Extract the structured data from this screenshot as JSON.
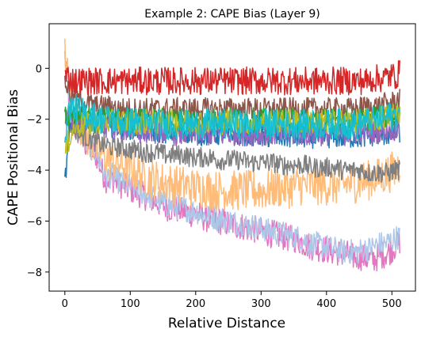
{
  "chart_data": {
    "type": "line",
    "title": "Example 2: CAPE Bias (Layer 9)",
    "xlabel": "Relative Distance",
    "ylabel": "CAPE Positional Bias",
    "xlim": [
      -24,
      536
    ],
    "ylim": [
      -8.75,
      1.75
    ],
    "xticks": [
      0,
      100,
      200,
      300,
      400,
      500
    ],
    "yticks": [
      0,
      -2,
      -4,
      -6,
      -8
    ],
    "xtick_labels": [
      "0",
      "100",
      "200",
      "300",
      "400",
      "500"
    ],
    "ytick_labels": [
      "0",
      "−2",
      "−4",
      "−6",
      "−8"
    ],
    "grid": false,
    "x_step": 8,
    "x_count": 65,
    "series": [
      {
        "color": "#e377c2",
        "noise": 0.55,
        "values": [
          0.5,
          -1.6,
          -2.4,
          -2.6,
          -3.0,
          -3.2,
          -3.4,
          -4.0,
          -4.4,
          -4.3,
          -4.5,
          -4.6,
          -4.7,
          -4.8,
          -4.9,
          -5.0,
          -5.1,
          -5.2,
          -5.3,
          -5.4,
          -5.5,
          -5.5,
          -5.6,
          -5.6,
          -5.7,
          -5.7,
          -5.8,
          -5.9,
          -5.9,
          -6.0,
          -6.0,
          -6.1,
          -6.1,
          -6.2,
          -6.2,
          -6.3,
          -6.3,
          -6.4,
          -6.4,
          -6.5,
          -6.5,
          -6.6,
          -6.6,
          -6.7,
          -6.7,
          -6.8,
          -6.9,
          -7.0,
          -7.0,
          -7.1,
          -7.1,
          -7.2,
          -7.2,
          -7.3,
          -7.3,
          -7.4,
          -7.4,
          -7.4,
          -7.5,
          -7.5,
          -7.4,
          -7.3,
          -7.2,
          -7.0,
          -6.8
        ]
      },
      {
        "color": "#aec7e8",
        "noise": 0.5,
        "values": [
          0.3,
          -1.4,
          -2.2,
          -2.5,
          -2.9,
          -3.1,
          -3.3,
          -3.9,
          -4.3,
          -4.2,
          -4.4,
          -4.5,
          -4.6,
          -4.7,
          -4.8,
          -4.9,
          -5.0,
          -5.1,
          -5.2,
          -5.3,
          -5.4,
          -5.4,
          -5.5,
          -5.5,
          -5.6,
          -5.6,
          -5.7,
          -5.8,
          -5.8,
          -5.9,
          -5.9,
          -6.0,
          -6.0,
          -6.1,
          -6.1,
          -6.2,
          -6.2,
          -6.3,
          -6.3,
          -6.4,
          -6.4,
          -6.5,
          -6.5,
          -6.6,
          -6.6,
          -6.7,
          -6.8,
          -6.9,
          -6.9,
          -7.0,
          -7.0,
          -7.1,
          -7.1,
          -7.2,
          -7.2,
          -7.2,
          -7.2,
          -7.1,
          -7.1,
          -7.0,
          -6.9,
          -6.9,
          -6.8,
          -6.7,
          -6.6
        ]
      },
      {
        "color": "#ffbb78",
        "noise": 0.8,
        "values": [
          0.5,
          -1.0,
          -1.8,
          -2.2,
          -2.6,
          -2.9,
          -3.1,
          -3.3,
          -3.5,
          -3.6,
          -3.7,
          -3.8,
          -3.9,
          -4.0,
          -4.1,
          -4.2,
          -4.3,
          -4.4,
          -4.4,
          -4.5,
          -4.5,
          -4.6,
          -4.6,
          -4.6,
          -4.7,
          -4.7,
          -4.7,
          -4.7,
          -4.8,
          -4.8,
          -4.8,
          -4.8,
          -4.8,
          -4.8,
          -4.8,
          -4.8,
          -4.8,
          -4.8,
          -4.8,
          -4.8,
          -4.7,
          -4.7,
          -4.7,
          -4.7,
          -4.6,
          -4.6,
          -4.6,
          -4.6,
          -4.6,
          -4.6,
          -4.6,
          -4.6,
          -4.6,
          -4.6,
          -4.5,
          -4.5,
          -4.5,
          -4.4,
          -4.4,
          -4.3,
          -4.3,
          -4.2,
          -4.1,
          -4.0,
          -3.8
        ]
      },
      {
        "color": "#7f7f7f",
        "noise": 0.4,
        "values": [
          -1.8,
          -2.2,
          -2.4,
          -2.6,
          -2.7,
          -2.8,
          -2.9,
          -3.0,
          -3.0,
          -3.1,
          -3.1,
          -3.1,
          -3.2,
          -3.2,
          -3.2,
          -3.3,
          -3.3,
          -3.3,
          -3.3,
          -3.4,
          -3.4,
          -3.4,
          -3.4,
          -3.4,
          -3.5,
          -3.5,
          -3.5,
          -3.5,
          -3.5,
          -3.6,
          -3.6,
          -3.6,
          -3.6,
          -3.6,
          -3.6,
          -3.7,
          -3.7,
          -3.7,
          -3.7,
          -3.7,
          -3.7,
          -3.8,
          -3.8,
          -3.8,
          -3.8,
          -3.8,
          -3.8,
          -3.9,
          -3.9,
          -3.9,
          -3.9,
          -3.9,
          -3.9,
          -4.0,
          -4.0,
          -4.0,
          -4.0,
          -4.0,
          -4.1,
          -4.1,
          -4.1,
          -4.1,
          -4.1,
          -4.0,
          -4.0
        ]
      },
      {
        "color": "#1f77b4",
        "noise": 0.45,
        "values": [
          -4.5,
          -2.4,
          -2.0,
          -2.0,
          -2.1,
          -2.1,
          -2.2,
          -2.2,
          -2.2,
          -2.3,
          -2.3,
          -2.3,
          -2.3,
          -2.4,
          -2.4,
          -2.4,
          -2.4,
          -2.5,
          -2.5,
          -2.5,
          -2.5,
          -2.5,
          -2.5,
          -2.5,
          -2.5,
          -2.6,
          -2.6,
          -2.6,
          -2.6,
          -2.6,
          -2.6,
          -2.6,
          -2.6,
          -2.6,
          -2.6,
          -2.6,
          -2.6,
          -2.6,
          -2.7,
          -2.7,
          -2.7,
          -2.7,
          -2.7,
          -2.7,
          -2.7,
          -2.7,
          -2.7,
          -2.7,
          -2.7,
          -2.7,
          -2.7,
          -2.7,
          -2.7,
          -2.7,
          -2.7,
          -2.7,
          -2.7,
          -2.7,
          -2.7,
          -2.6,
          -2.6,
          -2.6,
          -2.6,
          -2.5,
          -2.5
        ]
      },
      {
        "color": "#9467bd",
        "noise": 0.45,
        "values": [
          -2.0,
          -1.9,
          -2.0,
          -2.1,
          -2.1,
          -2.2,
          -2.2,
          -2.3,
          -2.3,
          -2.3,
          -2.4,
          -2.4,
          -2.4,
          -2.4,
          -2.5,
          -2.5,
          -2.5,
          -2.5,
          -2.5,
          -2.5,
          -2.5,
          -2.6,
          -2.6,
          -2.6,
          -2.6,
          -2.6,
          -2.6,
          -2.6,
          -2.6,
          -2.6,
          -2.6,
          -2.6,
          -2.6,
          -2.6,
          -2.6,
          -2.6,
          -2.6,
          -2.6,
          -2.6,
          -2.6,
          -2.6,
          -2.6,
          -2.6,
          -2.6,
          -2.6,
          -2.6,
          -2.6,
          -2.6,
          -2.6,
          -2.6,
          -2.6,
          -2.6,
          -2.6,
          -2.6,
          -2.6,
          -2.6,
          -2.5,
          -2.5,
          -2.5,
          -2.5,
          -2.5,
          -2.4,
          -2.4,
          -2.4,
          -2.3
        ]
      },
      {
        "color": "#8c564b",
        "noise": 0.45,
        "values": [
          -0.5,
          -1.0,
          -1.2,
          -1.3,
          -1.4,
          -1.4,
          -1.5,
          -1.5,
          -1.5,
          -1.5,
          -1.6,
          -1.6,
          -1.6,
          -1.6,
          -1.6,
          -1.6,
          -1.6,
          -1.6,
          -1.6,
          -1.6,
          -1.6,
          -1.6,
          -1.6,
          -1.6,
          -1.6,
          -1.6,
          -1.6,
          -1.6,
          -1.6,
          -1.6,
          -1.6,
          -1.6,
          -1.6,
          -1.6,
          -1.6,
          -1.6,
          -1.6,
          -1.6,
          -1.6,
          -1.6,
          -1.6,
          -1.6,
          -1.6,
          -1.6,
          -1.6,
          -1.6,
          -1.6,
          -1.6,
          -1.6,
          -1.6,
          -1.6,
          -1.6,
          -1.6,
          -1.6,
          -1.6,
          -1.6,
          -1.6,
          -1.5,
          -1.5,
          -1.5,
          -1.5,
          -1.4,
          -1.4,
          -1.3,
          -1.2
        ]
      },
      {
        "color": "#2ca02c",
        "noise": 0.45,
        "values": [
          -2.0,
          -1.8,
          -1.8,
          -1.9,
          -1.9,
          -1.9,
          -2.0,
          -2.0,
          -2.0,
          -2.0,
          -2.0,
          -2.0,
          -2.0,
          -2.0,
          -2.0,
          -2.0,
          -2.0,
          -2.0,
          -2.0,
          -2.0,
          -2.0,
          -2.0,
          -2.0,
          -2.0,
          -2.0,
          -2.0,
          -2.0,
          -2.0,
          -2.0,
          -2.0,
          -2.0,
          -2.0,
          -2.0,
          -2.0,
          -2.0,
          -2.0,
          -2.0,
          -2.0,
          -2.0,
          -2.0,
          -2.0,
          -2.0,
          -2.0,
          -2.0,
          -2.0,
          -2.0,
          -2.0,
          -2.0,
          -2.0,
          -2.0,
          -2.0,
          -2.0,
          -2.0,
          -2.0,
          -2.0,
          -2.0,
          -2.0,
          -2.0,
          -2.0,
          -1.9,
          -1.9,
          -1.9,
          -1.8,
          -1.8,
          -1.7
        ]
      },
      {
        "color": "#bcbd22",
        "noise": 0.5,
        "values": [
          -3.5,
          -2.6,
          -2.3,
          -2.2,
          -2.2,
          -2.2,
          -2.1,
          -2.1,
          -2.1,
          -2.1,
          -2.1,
          -2.1,
          -2.1,
          -2.1,
          -2.1,
          -2.1,
          -2.1,
          -2.1,
          -2.1,
          -2.1,
          -2.1,
          -2.1,
          -2.1,
          -2.1,
          -2.1,
          -2.1,
          -2.1,
          -2.1,
          -2.1,
          -2.1,
          -2.1,
          -2.1,
          -2.1,
          -2.1,
          -2.1,
          -2.1,
          -2.1,
          -2.1,
          -2.1,
          -2.1,
          -2.1,
          -2.1,
          -2.1,
          -2.1,
          -2.1,
          -2.1,
          -2.1,
          -2.1,
          -2.1,
          -2.1,
          -2.1,
          -2.1,
          -2.1,
          -2.1,
          -2.1,
          -2.1,
          -2.1,
          -2.1,
          -2.0,
          -2.0,
          -2.0,
          -1.9,
          -1.9,
          -1.8,
          -1.7
        ]
      },
      {
        "color": "#d62728",
        "noise": 0.55,
        "values": [
          -0.3,
          -0.4,
          -0.5,
          -0.5,
          -0.5,
          -0.5,
          -0.5,
          -0.5,
          -0.5,
          -0.5,
          -0.5,
          -0.5,
          -0.5,
          -0.5,
          -0.5,
          -0.5,
          -0.5,
          -0.5,
          -0.5,
          -0.5,
          -0.5,
          -0.5,
          -0.5,
          -0.5,
          -0.5,
          -0.5,
          -0.5,
          -0.5,
          -0.5,
          -0.5,
          -0.5,
          -0.5,
          -0.5,
          -0.5,
          -0.5,
          -0.5,
          -0.5,
          -0.5,
          -0.5,
          -0.5,
          -0.5,
          -0.5,
          -0.5,
          -0.5,
          -0.5,
          -0.5,
          -0.5,
          -0.5,
          -0.5,
          -0.5,
          -0.5,
          -0.5,
          -0.5,
          -0.5,
          -0.5,
          -0.5,
          -0.5,
          -0.5,
          -0.5,
          -0.4,
          -0.4,
          -0.4,
          -0.3,
          -0.3,
          -0.2
        ]
      },
      {
        "color": "#17becf",
        "noise": 0.6,
        "values": [
          -2.5,
          -1.5,
          -1.6,
          -1.7,
          -1.8,
          -1.9,
          -1.9,
          -2.0,
          -2.0,
          -2.0,
          -2.1,
          -2.1,
          -2.1,
          -2.1,
          -2.1,
          -2.1,
          -2.2,
          -2.2,
          -2.2,
          -2.2,
          -2.2,
          -2.2,
          -2.2,
          -2.2,
          -2.2,
          -2.2,
          -2.2,
          -2.2,
          -2.2,
          -2.2,
          -2.2,
          -2.2,
          -2.2,
          -2.2,
          -2.2,
          -2.2,
          -2.2,
          -2.2,
          -2.2,
          -2.2,
          -2.2,
          -2.2,
          -2.2,
          -2.2,
          -2.2,
          -2.2,
          -2.2,
          -2.2,
          -2.2,
          -2.2,
          -2.2,
          -2.2,
          -2.2,
          -2.2,
          -2.2,
          -2.2,
          -2.2,
          -2.1,
          -2.1,
          -2.1,
          -2.0,
          -2.0,
          -1.9,
          -1.9,
          -1.8
        ]
      }
    ]
  }
}
